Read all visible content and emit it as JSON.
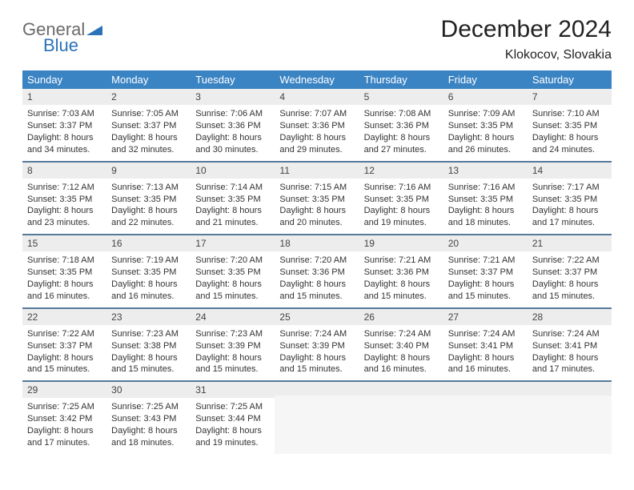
{
  "logo": {
    "line1": "General",
    "line2": "Blue"
  },
  "title": "December 2024",
  "location": "Klokocov, Slovakia",
  "colors": {
    "header_bg": "#3b84c4",
    "header_fg": "#ffffff",
    "daynum_bg": "#ededed",
    "row_border": "#567a9c",
    "logo_gray": "#6a6a6a",
    "logo_blue": "#2b72b8"
  },
  "weekdays": [
    "Sunday",
    "Monday",
    "Tuesday",
    "Wednesday",
    "Thursday",
    "Friday",
    "Saturday"
  ],
  "weeks": [
    [
      {
        "day": "1",
        "sunrise": "Sunrise: 7:03 AM",
        "sunset": "Sunset: 3:37 PM",
        "daylight1": "Daylight: 8 hours",
        "daylight2": "and 34 minutes."
      },
      {
        "day": "2",
        "sunrise": "Sunrise: 7:05 AM",
        "sunset": "Sunset: 3:37 PM",
        "daylight1": "Daylight: 8 hours",
        "daylight2": "and 32 minutes."
      },
      {
        "day": "3",
        "sunrise": "Sunrise: 7:06 AM",
        "sunset": "Sunset: 3:36 PM",
        "daylight1": "Daylight: 8 hours",
        "daylight2": "and 30 minutes."
      },
      {
        "day": "4",
        "sunrise": "Sunrise: 7:07 AM",
        "sunset": "Sunset: 3:36 PM",
        "daylight1": "Daylight: 8 hours",
        "daylight2": "and 29 minutes."
      },
      {
        "day": "5",
        "sunrise": "Sunrise: 7:08 AM",
        "sunset": "Sunset: 3:36 PM",
        "daylight1": "Daylight: 8 hours",
        "daylight2": "and 27 minutes."
      },
      {
        "day": "6",
        "sunrise": "Sunrise: 7:09 AM",
        "sunset": "Sunset: 3:35 PM",
        "daylight1": "Daylight: 8 hours",
        "daylight2": "and 26 minutes."
      },
      {
        "day": "7",
        "sunrise": "Sunrise: 7:10 AM",
        "sunset": "Sunset: 3:35 PM",
        "daylight1": "Daylight: 8 hours",
        "daylight2": "and 24 minutes."
      }
    ],
    [
      {
        "day": "8",
        "sunrise": "Sunrise: 7:12 AM",
        "sunset": "Sunset: 3:35 PM",
        "daylight1": "Daylight: 8 hours",
        "daylight2": "and 23 minutes."
      },
      {
        "day": "9",
        "sunrise": "Sunrise: 7:13 AM",
        "sunset": "Sunset: 3:35 PM",
        "daylight1": "Daylight: 8 hours",
        "daylight2": "and 22 minutes."
      },
      {
        "day": "10",
        "sunrise": "Sunrise: 7:14 AM",
        "sunset": "Sunset: 3:35 PM",
        "daylight1": "Daylight: 8 hours",
        "daylight2": "and 21 minutes."
      },
      {
        "day": "11",
        "sunrise": "Sunrise: 7:15 AM",
        "sunset": "Sunset: 3:35 PM",
        "daylight1": "Daylight: 8 hours",
        "daylight2": "and 20 minutes."
      },
      {
        "day": "12",
        "sunrise": "Sunrise: 7:16 AM",
        "sunset": "Sunset: 3:35 PM",
        "daylight1": "Daylight: 8 hours",
        "daylight2": "and 19 minutes."
      },
      {
        "day": "13",
        "sunrise": "Sunrise: 7:16 AM",
        "sunset": "Sunset: 3:35 PM",
        "daylight1": "Daylight: 8 hours",
        "daylight2": "and 18 minutes."
      },
      {
        "day": "14",
        "sunrise": "Sunrise: 7:17 AM",
        "sunset": "Sunset: 3:35 PM",
        "daylight1": "Daylight: 8 hours",
        "daylight2": "and 17 minutes."
      }
    ],
    [
      {
        "day": "15",
        "sunrise": "Sunrise: 7:18 AM",
        "sunset": "Sunset: 3:35 PM",
        "daylight1": "Daylight: 8 hours",
        "daylight2": "and 16 minutes."
      },
      {
        "day": "16",
        "sunrise": "Sunrise: 7:19 AM",
        "sunset": "Sunset: 3:35 PM",
        "daylight1": "Daylight: 8 hours",
        "daylight2": "and 16 minutes."
      },
      {
        "day": "17",
        "sunrise": "Sunrise: 7:20 AM",
        "sunset": "Sunset: 3:35 PM",
        "daylight1": "Daylight: 8 hours",
        "daylight2": "and 15 minutes."
      },
      {
        "day": "18",
        "sunrise": "Sunrise: 7:20 AM",
        "sunset": "Sunset: 3:36 PM",
        "daylight1": "Daylight: 8 hours",
        "daylight2": "and 15 minutes."
      },
      {
        "day": "19",
        "sunrise": "Sunrise: 7:21 AM",
        "sunset": "Sunset: 3:36 PM",
        "daylight1": "Daylight: 8 hours",
        "daylight2": "and 15 minutes."
      },
      {
        "day": "20",
        "sunrise": "Sunrise: 7:21 AM",
        "sunset": "Sunset: 3:37 PM",
        "daylight1": "Daylight: 8 hours",
        "daylight2": "and 15 minutes."
      },
      {
        "day": "21",
        "sunrise": "Sunrise: 7:22 AM",
        "sunset": "Sunset: 3:37 PM",
        "daylight1": "Daylight: 8 hours",
        "daylight2": "and 15 minutes."
      }
    ],
    [
      {
        "day": "22",
        "sunrise": "Sunrise: 7:22 AM",
        "sunset": "Sunset: 3:37 PM",
        "daylight1": "Daylight: 8 hours",
        "daylight2": "and 15 minutes."
      },
      {
        "day": "23",
        "sunrise": "Sunrise: 7:23 AM",
        "sunset": "Sunset: 3:38 PM",
        "daylight1": "Daylight: 8 hours",
        "daylight2": "and 15 minutes."
      },
      {
        "day": "24",
        "sunrise": "Sunrise: 7:23 AM",
        "sunset": "Sunset: 3:39 PM",
        "daylight1": "Daylight: 8 hours",
        "daylight2": "and 15 minutes."
      },
      {
        "day": "25",
        "sunrise": "Sunrise: 7:24 AM",
        "sunset": "Sunset: 3:39 PM",
        "daylight1": "Daylight: 8 hours",
        "daylight2": "and 15 minutes."
      },
      {
        "day": "26",
        "sunrise": "Sunrise: 7:24 AM",
        "sunset": "Sunset: 3:40 PM",
        "daylight1": "Daylight: 8 hours",
        "daylight2": "and 16 minutes."
      },
      {
        "day": "27",
        "sunrise": "Sunrise: 7:24 AM",
        "sunset": "Sunset: 3:41 PM",
        "daylight1": "Daylight: 8 hours",
        "daylight2": "and 16 minutes."
      },
      {
        "day": "28",
        "sunrise": "Sunrise: 7:24 AM",
        "sunset": "Sunset: 3:41 PM",
        "daylight1": "Daylight: 8 hours",
        "daylight2": "and 17 minutes."
      }
    ],
    [
      {
        "day": "29",
        "sunrise": "Sunrise: 7:25 AM",
        "sunset": "Sunset: 3:42 PM",
        "daylight1": "Daylight: 8 hours",
        "daylight2": "and 17 minutes."
      },
      {
        "day": "30",
        "sunrise": "Sunrise: 7:25 AM",
        "sunset": "Sunset: 3:43 PM",
        "daylight1": "Daylight: 8 hours",
        "daylight2": "and 18 minutes."
      },
      {
        "day": "31",
        "sunrise": "Sunrise: 7:25 AM",
        "sunset": "Sunset: 3:44 PM",
        "daylight1": "Daylight: 8 hours",
        "daylight2": "and 19 minutes."
      },
      null,
      null,
      null,
      null
    ]
  ]
}
